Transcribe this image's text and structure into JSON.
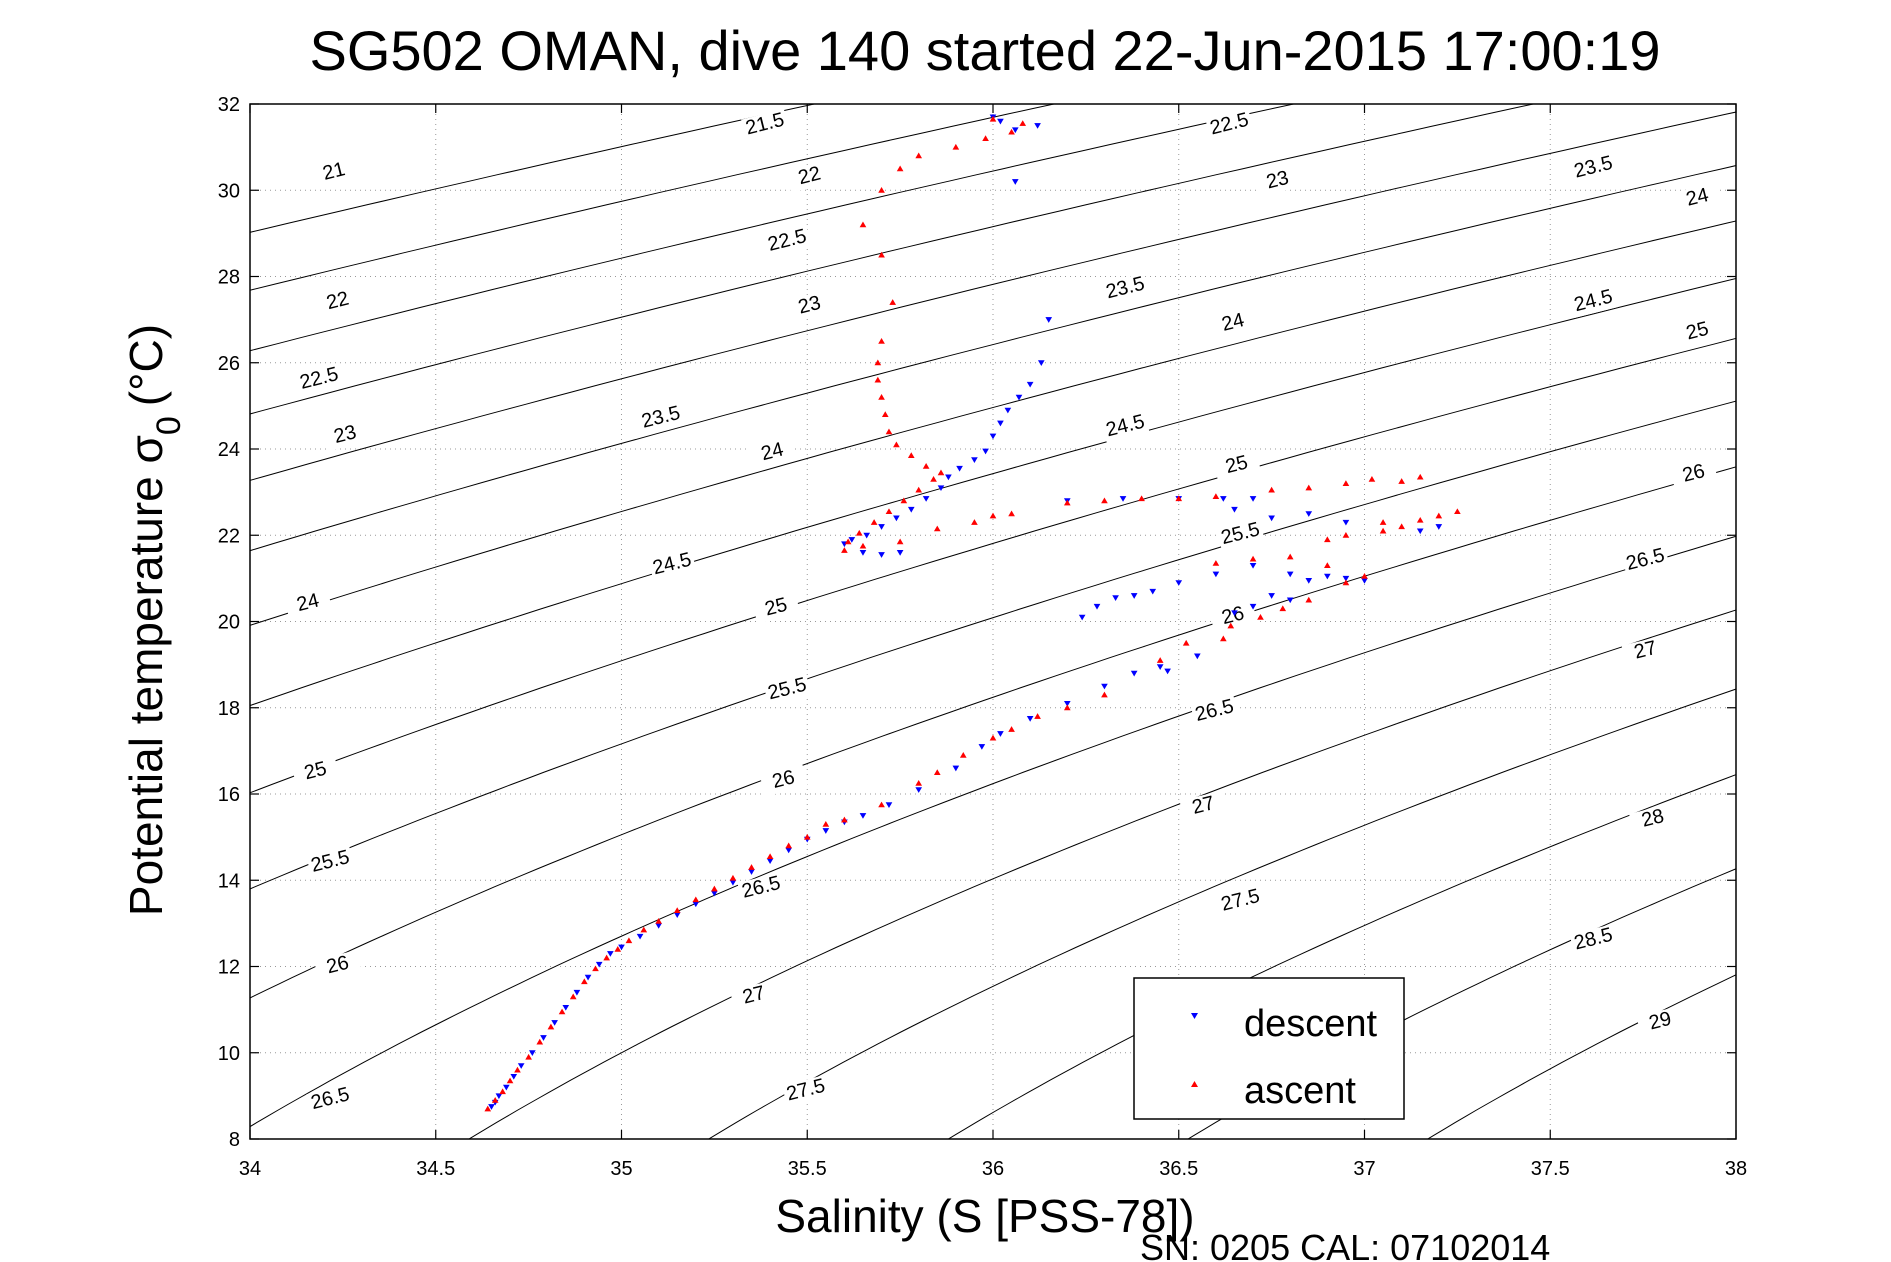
{
  "chart_data": {
    "type": "scatter",
    "title": "SG502 OMAN, dive 140 started 22-Jun-2015 17:00:19",
    "xlabel": "Salinity (S [PSS-78])",
    "ylabel_main": "Potential temperature σ",
    "ylabel_sub": "0",
    "ylabel_unit": "(°C)",
    "footer": "SN: 0205  CAL: 07102014",
    "xlim": [
      34,
      38
    ],
    "ylim": [
      8,
      32
    ],
    "xticks": [
      34,
      34.5,
      35,
      35.5,
      36,
      36.5,
      37,
      37.5,
      38
    ],
    "xtick_labels": [
      "34",
      "34.5",
      "35",
      "35.5",
      "36",
      "36.5",
      "37",
      "37.5",
      "38"
    ],
    "yticks": [
      8,
      10,
      12,
      14,
      16,
      18,
      20,
      22,
      24,
      26,
      28,
      30,
      32
    ],
    "ytick_labels": [
      "8",
      "10",
      "12",
      "14",
      "16",
      "18",
      "20",
      "22",
      "24",
      "26",
      "28",
      "30",
      "32"
    ],
    "grid": "dotted",
    "legend_position": "bottom-right",
    "colors": {
      "descent": "#0000ff",
      "ascent": "#ff0000",
      "contour": "#000000",
      "grid": "#999999"
    },
    "contours": {
      "levels": [
        21,
        21.5,
        22,
        22.5,
        23,
        23.5,
        24,
        24.5,
        25,
        25.5,
        26,
        26.5,
        27,
        27.5,
        28,
        28.5,
        29
      ],
      "labels": [
        {
          "text": "21",
          "s": 34.23,
          "t": 30.3
        },
        {
          "text": "21.5",
          "s": 35.39,
          "t": 31.4
        },
        {
          "text": "22.5",
          "s": 36.64,
          "t": 31.4
        },
        {
          "text": "22",
          "s": 35.51,
          "t": 30.2
        },
        {
          "text": "23",
          "s": 36.77,
          "t": 30.1
        },
        {
          "text": "23.5",
          "s": 37.62,
          "t": 30.4
        },
        {
          "text": "24",
          "s": 37.9,
          "t": 29.7
        },
        {
          "text": "22.5",
          "s": 35.45,
          "t": 28.7
        },
        {
          "text": "22",
          "s": 34.24,
          "t": 27.3
        },
        {
          "text": "23",
          "s": 35.51,
          "t": 27.2
        },
        {
          "text": "23.5",
          "s": 36.36,
          "t": 27.6
        },
        {
          "text": "24.5",
          "s": 37.62,
          "t": 27.3
        },
        {
          "text": "24",
          "s": 36.65,
          "t": 26.8
        },
        {
          "text": "25",
          "s": 37.9,
          "t": 26.6
        },
        {
          "text": "22.5",
          "s": 34.19,
          "t": 25.5
        },
        {
          "text": "23.5",
          "s": 35.11,
          "t": 24.6
        },
        {
          "text": "23",
          "s": 34.26,
          "t": 24.2
        },
        {
          "text": "24.5",
          "s": 36.36,
          "t": 24.4
        },
        {
          "text": "24",
          "s": 35.41,
          "t": 23.8
        },
        {
          "text": "25",
          "s": 36.66,
          "t": 23.5
        },
        {
          "text": "26",
          "s": 37.89,
          "t": 23.3
        },
        {
          "text": "25.5",
          "s": 36.67,
          "t": 21.9
        },
        {
          "text": "26.5",
          "s": 37.76,
          "t": 21.3
        },
        {
          "text": "24.5",
          "s": 35.14,
          "t": 21.2
        },
        {
          "text": "24",
          "s": 34.16,
          "t": 20.3
        },
        {
          "text": "25",
          "s": 35.42,
          "t": 20.2
        },
        {
          "text": "26",
          "s": 36.65,
          "t": 20.0
        },
        {
          "text": "27",
          "s": 37.76,
          "t": 19.2
        },
        {
          "text": "25.5",
          "s": 35.45,
          "t": 18.3
        },
        {
          "text": "26.5",
          "s": 36.6,
          "t": 17.8
        },
        {
          "text": "25",
          "s": 34.18,
          "t": 16.4
        },
        {
          "text": "26",
          "s": 35.44,
          "t": 16.2
        },
        {
          "text": "27",
          "s": 36.57,
          "t": 15.6
        },
        {
          "text": "28",
          "s": 37.78,
          "t": 15.3
        },
        {
          "text": "25.5",
          "s": 34.22,
          "t": 14.3
        },
        {
          "text": "26.5",
          "s": 35.38,
          "t": 13.7
        },
        {
          "text": "27.5",
          "s": 36.67,
          "t": 13.4
        },
        {
          "text": "26",
          "s": 34.24,
          "t": 11.9
        },
        {
          "text": "28.5",
          "s": 37.62,
          "t": 12.5
        },
        {
          "text": "27",
          "s": 35.36,
          "t": 11.2
        },
        {
          "text": "29",
          "s": 37.8,
          "t": 10.6
        },
        {
          "text": "26.5",
          "s": 34.22,
          "t": 8.8
        },
        {
          "text": "27.5",
          "s": 35.5,
          "t": 9.0
        }
      ]
    },
    "series": [
      {
        "name": "descent",
        "marker": "triangle-down",
        "color": "#0000ff",
        "points": [
          [
            34.65,
            8.75
          ],
          [
            34.66,
            8.85
          ],
          [
            34.67,
            9.0
          ],
          [
            34.69,
            9.2
          ],
          [
            34.71,
            9.45
          ],
          [
            34.73,
            9.7
          ],
          [
            34.76,
            10.0
          ],
          [
            34.79,
            10.35
          ],
          [
            34.82,
            10.7
          ],
          [
            34.85,
            11.05
          ],
          [
            34.88,
            11.4
          ],
          [
            34.91,
            11.75
          ],
          [
            34.94,
            12.05
          ],
          [
            34.97,
            12.3
          ],
          [
            35.0,
            12.45
          ],
          [
            35.05,
            12.7
          ],
          [
            35.1,
            12.95
          ],
          [
            35.15,
            13.2
          ],
          [
            35.2,
            13.45
          ],
          [
            35.25,
            13.7
          ],
          [
            35.3,
            13.95
          ],
          [
            35.35,
            14.2
          ],
          [
            35.4,
            14.45
          ],
          [
            35.45,
            14.7
          ],
          [
            35.5,
            14.95
          ],
          [
            35.55,
            15.15
          ],
          [
            35.6,
            15.35
          ],
          [
            35.65,
            15.5
          ],
          [
            35.72,
            15.75
          ],
          [
            35.8,
            16.1
          ],
          [
            35.9,
            16.6
          ],
          [
            35.97,
            17.1
          ],
          [
            36.02,
            17.4
          ],
          [
            36.1,
            17.75
          ],
          [
            36.2,
            18.1
          ],
          [
            36.3,
            18.5
          ],
          [
            36.45,
            18.95
          ],
          [
            36.55,
            19.2
          ],
          [
            36.47,
            18.85
          ],
          [
            36.38,
            18.8
          ],
          [
            36.24,
            20.1
          ],
          [
            36.28,
            20.35
          ],
          [
            36.33,
            20.55
          ],
          [
            36.38,
            20.6
          ],
          [
            36.43,
            20.7
          ],
          [
            36.5,
            20.9
          ],
          [
            36.6,
            21.1
          ],
          [
            36.7,
            21.3
          ],
          [
            36.8,
            21.1
          ],
          [
            36.85,
            20.95
          ],
          [
            36.9,
            21.05
          ],
          [
            36.95,
            21.0
          ],
          [
            37.0,
            20.95
          ],
          [
            36.75,
            20.6
          ],
          [
            36.8,
            20.5
          ],
          [
            36.7,
            20.35
          ],
          [
            36.65,
            20.2
          ],
          [
            37.2,
            22.2
          ],
          [
            37.15,
            22.1
          ],
          [
            36.95,
            22.3
          ],
          [
            36.85,
            22.5
          ],
          [
            36.75,
            22.4
          ],
          [
            36.65,
            22.6
          ],
          [
            36.62,
            22.85
          ],
          [
            36.7,
            22.85
          ],
          [
            36.5,
            22.85
          ],
          [
            36.35,
            22.85
          ],
          [
            36.2,
            22.8
          ],
          [
            35.6,
            21.8
          ],
          [
            35.62,
            21.9
          ],
          [
            35.66,
            22.0
          ],
          [
            35.7,
            22.2
          ],
          [
            35.74,
            22.4
          ],
          [
            35.78,
            22.6
          ],
          [
            35.82,
            22.85
          ],
          [
            35.86,
            23.1
          ],
          [
            35.88,
            23.35
          ],
          [
            35.91,
            23.55
          ],
          [
            35.95,
            23.75
          ],
          [
            35.98,
            23.95
          ],
          [
            36.0,
            24.3
          ],
          [
            36.02,
            24.6
          ],
          [
            36.04,
            24.9
          ],
          [
            36.07,
            25.2
          ],
          [
            36.1,
            25.5
          ],
          [
            36.13,
            26.0
          ],
          [
            36.15,
            27.0
          ],
          [
            36.0,
            31.7
          ],
          [
            36.02,
            31.6
          ],
          [
            36.06,
            31.4
          ],
          [
            36.12,
            31.5
          ],
          [
            36.06,
            30.2
          ],
          [
            35.65,
            21.6
          ],
          [
            35.7,
            21.55
          ],
          [
            35.75,
            21.6
          ]
        ]
      },
      {
        "name": "ascent",
        "marker": "triangle-up",
        "color": "#ff0000",
        "points": [
          [
            34.64,
            8.7
          ],
          [
            34.66,
            8.9
          ],
          [
            34.68,
            9.1
          ],
          [
            34.7,
            9.35
          ],
          [
            34.72,
            9.6
          ],
          [
            34.75,
            9.9
          ],
          [
            34.78,
            10.25
          ],
          [
            34.81,
            10.6
          ],
          [
            34.84,
            10.95
          ],
          [
            34.87,
            11.3
          ],
          [
            34.9,
            11.65
          ],
          [
            34.93,
            11.95
          ],
          [
            34.96,
            12.2
          ],
          [
            34.99,
            12.4
          ],
          [
            35.02,
            12.6
          ],
          [
            35.06,
            12.85
          ],
          [
            35.1,
            13.05
          ],
          [
            35.15,
            13.3
          ],
          [
            35.2,
            13.55
          ],
          [
            35.25,
            13.8
          ],
          [
            35.3,
            14.05
          ],
          [
            35.35,
            14.3
          ],
          [
            35.4,
            14.55
          ],
          [
            35.45,
            14.8
          ],
          [
            35.5,
            15.0
          ],
          [
            35.55,
            15.3
          ],
          [
            35.6,
            15.4
          ],
          [
            35.7,
            15.75
          ],
          [
            35.8,
            16.25
          ],
          [
            35.85,
            16.5
          ],
          [
            35.92,
            16.9
          ],
          [
            36.0,
            17.3
          ],
          [
            36.05,
            17.5
          ],
          [
            36.12,
            17.8
          ],
          [
            36.2,
            18.0
          ],
          [
            36.3,
            18.3
          ],
          [
            36.45,
            19.1
          ],
          [
            36.52,
            19.5
          ],
          [
            36.62,
            19.6
          ],
          [
            36.64,
            19.9
          ],
          [
            36.72,
            20.1
          ],
          [
            36.78,
            20.3
          ],
          [
            36.85,
            20.5
          ],
          [
            36.95,
            20.9
          ],
          [
            37.0,
            21.05
          ],
          [
            36.9,
            21.3
          ],
          [
            36.8,
            21.5
          ],
          [
            36.7,
            21.45
          ],
          [
            36.6,
            21.35
          ],
          [
            37.05,
            22.1
          ],
          [
            37.1,
            22.2
          ],
          [
            37.15,
            22.35
          ],
          [
            37.2,
            22.45
          ],
          [
            37.25,
            22.55
          ],
          [
            37.05,
            22.3
          ],
          [
            36.95,
            22.0
          ],
          [
            36.9,
            21.9
          ],
          [
            37.02,
            23.3
          ],
          [
            37.1,
            23.25
          ],
          [
            37.15,
            23.35
          ],
          [
            36.95,
            23.2
          ],
          [
            36.85,
            23.1
          ],
          [
            36.75,
            23.05
          ],
          [
            36.6,
            22.9
          ],
          [
            36.5,
            22.85
          ],
          [
            36.4,
            22.85
          ],
          [
            36.3,
            22.8
          ],
          [
            36.2,
            22.75
          ],
          [
            36.05,
            22.5
          ],
          [
            36.0,
            22.45
          ],
          [
            35.95,
            22.3
          ],
          [
            35.85,
            22.15
          ],
          [
            35.75,
            21.85
          ],
          [
            35.65,
            21.75
          ],
          [
            35.6,
            21.65
          ],
          [
            35.61,
            21.85
          ],
          [
            35.64,
            22.05
          ],
          [
            35.68,
            22.3
          ],
          [
            35.72,
            22.55
          ],
          [
            35.76,
            22.8
          ],
          [
            35.8,
            23.05
          ],
          [
            35.84,
            23.3
          ],
          [
            35.86,
            23.45
          ],
          [
            35.82,
            23.6
          ],
          [
            35.78,
            23.85
          ],
          [
            35.74,
            24.1
          ],
          [
            35.72,
            24.4
          ],
          [
            35.71,
            24.8
          ],
          [
            35.7,
            25.2
          ],
          [
            35.69,
            25.6
          ],
          [
            35.69,
            26.0
          ],
          [
            35.7,
            26.5
          ],
          [
            35.73,
            27.4
          ],
          [
            35.7,
            28.5
          ],
          [
            35.65,
            29.2
          ],
          [
            35.7,
            30.0
          ],
          [
            35.75,
            30.5
          ],
          [
            35.8,
            30.8
          ],
          [
            35.9,
            31.0
          ],
          [
            35.98,
            31.2
          ],
          [
            36.05,
            31.35
          ],
          [
            36.08,
            31.55
          ],
          [
            36.0,
            31.65
          ]
        ]
      }
    ],
    "legend": [
      "descent",
      "ascent"
    ]
  }
}
